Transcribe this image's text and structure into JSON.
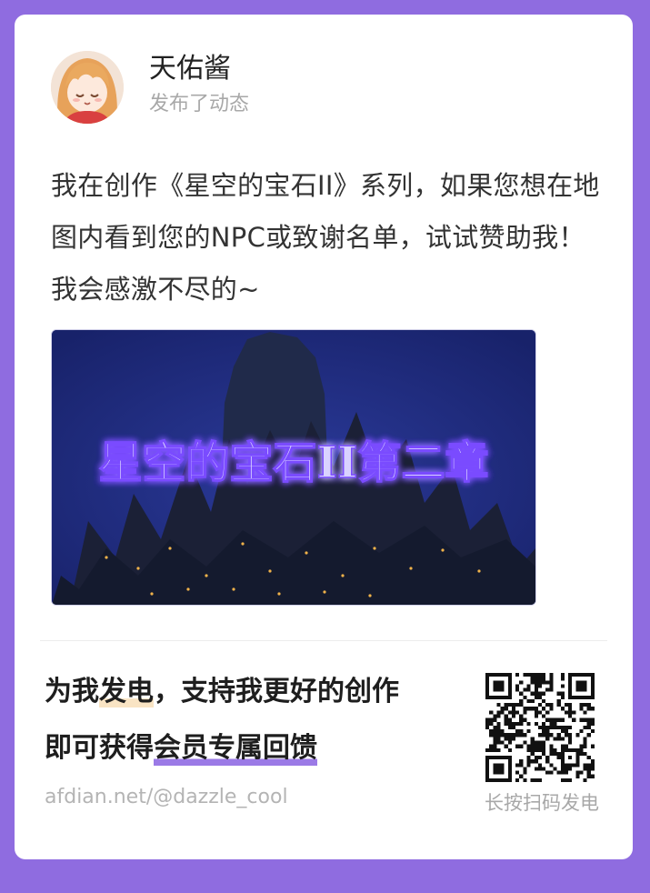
{
  "post": {
    "author": "天佑酱",
    "action": "发布了动态",
    "text": "我在创作《星空的宝石II》系列，如果您想在地图内看到您的NPC或致谢名单，试试赞助我！我会感激不尽的~",
    "image_title": "星空的宝石II第二章"
  },
  "promo": {
    "line1_part1": "为我",
    "line1_highlight": "发电",
    "line1_part2": "，支持我更好的创作",
    "line2_part1": "即可获得",
    "line2_highlight": "会员专属回馈",
    "link": "afdian.net/@dazzle_cool",
    "qr_caption": "长按扫码发电"
  },
  "colors": {
    "background": "#8f6ce0",
    "card": "#ffffff",
    "highlight_orange": "#f9e4c4",
    "highlight_purple": "#9b7ae6"
  },
  "icons": {
    "avatar": "anime-girl-avatar",
    "qr": "qr-code"
  }
}
